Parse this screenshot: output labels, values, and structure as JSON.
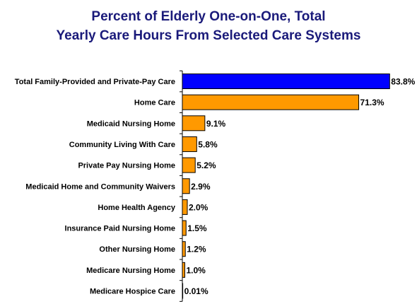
{
  "chart_data": {
    "type": "bar",
    "orientation": "horizontal",
    "title_lines": [
      "Percent of Elderly One-on-One, Total",
      "Yearly Care Hours From Selected Care Systems"
    ],
    "xlabel": "",
    "ylabel": "",
    "xlim": [
      0,
      84
    ],
    "grid": false,
    "legend": "none",
    "categories": [
      "Total Family-Provided and Private-Pay Care",
      "Home Care",
      "Medicaid Nursing Home",
      "Community Living With Care",
      "Private Pay Nursing Home",
      "Medicaid Home and Community Waivers",
      "Home Health Agency",
      "Insurance Paid Nursing Home",
      "Other Nursing Home",
      "Medicare Nursing Home",
      "Medicare Hospice Care"
    ],
    "values": [
      83.8,
      71.3,
      9.1,
      5.8,
      5.2,
      2.9,
      2.0,
      1.5,
      1.2,
      1.0,
      0.01
    ],
    "value_labels": [
      "83.8%",
      "71.3%",
      "9.1%",
      "5.8%",
      "5.2%",
      "2.9%",
      "2.0%",
      "1.5%",
      "1.2%",
      "1.0%",
      "0.01%"
    ],
    "bar_colors": [
      "#0000ff",
      "#ff9900",
      "#ff9900",
      "#ff9900",
      "#ff9900",
      "#ff9900",
      "#ff9900",
      "#ff9900",
      "#ff9900",
      "#ff9900",
      "#ff9900"
    ],
    "axis_color": "#000000"
  }
}
